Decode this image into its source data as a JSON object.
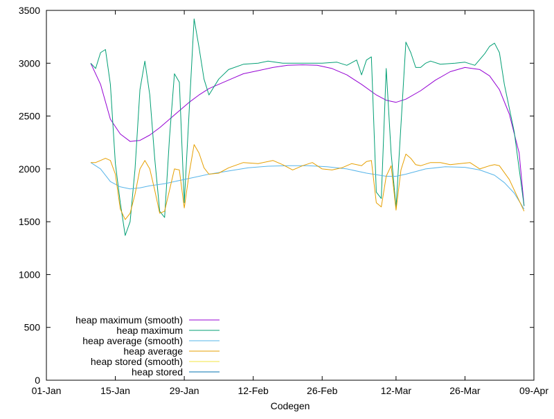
{
  "chart_data": {
    "type": "line",
    "title": "",
    "xlabel": "Codegen",
    "ylabel": "",
    "x_type": "date",
    "xlim": [
      "2024-01-01",
      "2024-04-09"
    ],
    "ylim": [
      0,
      3500
    ],
    "xticks": [
      {
        "date": "2024-01-01",
        "label": "01-Jan"
      },
      {
        "date": "2024-01-15",
        "label": "15-Jan"
      },
      {
        "date": "2024-01-29",
        "label": "29-Jan"
      },
      {
        "date": "2024-02-12",
        "label": "12-Feb"
      },
      {
        "date": "2024-02-26",
        "label": "26-Feb"
      },
      {
        "date": "2024-03-12",
        "label": "12-Mar"
      },
      {
        "date": "2024-03-26",
        "label": "26-Mar"
      },
      {
        "date": "2024-04-09",
        "label": "09-Apr"
      }
    ],
    "yticks": [
      {
        "value": 0,
        "label": "0"
      },
      {
        "value": 500,
        "label": "500"
      },
      {
        "value": 1000,
        "label": "1000"
      },
      {
        "value": 1500,
        "label": "1500"
      },
      {
        "value": 2000,
        "label": "2000"
      },
      {
        "value": 2500,
        "label": "2500"
      },
      {
        "value": 3000,
        "label": "3000"
      },
      {
        "value": 3500,
        "label": "3500"
      }
    ],
    "grid": false,
    "legend_position": "bottom-left",
    "series": [
      {
        "name": "heap maximum (smooth)",
        "color": "#9400d3",
        "points": [
          [
            "2024-01-10",
            3000
          ],
          [
            "2024-01-12",
            2800
          ],
          [
            "2024-01-14",
            2470
          ],
          [
            "2024-01-16",
            2330
          ],
          [
            "2024-01-18",
            2260
          ],
          [
            "2024-01-20",
            2270
          ],
          [
            "2024-01-22",
            2320
          ],
          [
            "2024-01-24",
            2390
          ],
          [
            "2024-01-26",
            2470
          ],
          [
            "2024-01-28",
            2550
          ],
          [
            "2024-01-30",
            2630
          ],
          [
            "2024-02-01",
            2700
          ],
          [
            "2024-02-03",
            2760
          ],
          [
            "2024-02-06",
            2820
          ],
          [
            "2024-02-08",
            2860
          ],
          [
            "2024-02-10",
            2900
          ],
          [
            "2024-02-13",
            2930
          ],
          [
            "2024-02-16",
            2960
          ],
          [
            "2024-02-19",
            2980
          ],
          [
            "2024-02-22",
            2985
          ],
          [
            "2024-02-25",
            2980
          ],
          [
            "2024-02-28",
            2950
          ],
          [
            "2024-03-02",
            2890
          ],
          [
            "2024-03-05",
            2800
          ],
          [
            "2024-03-08",
            2700
          ],
          [
            "2024-03-10",
            2650
          ],
          [
            "2024-03-12",
            2630
          ],
          [
            "2024-03-14",
            2660
          ],
          [
            "2024-03-17",
            2740
          ],
          [
            "2024-03-20",
            2840
          ],
          [
            "2024-03-23",
            2920
          ],
          [
            "2024-03-26",
            2960
          ],
          [
            "2024-03-29",
            2940
          ],
          [
            "2024-03-31",
            2880
          ],
          [
            "2024-04-02",
            2750
          ],
          [
            "2024-04-04",
            2520
          ],
          [
            "2024-04-06",
            2150
          ],
          [
            "2024-04-07",
            1650
          ]
        ]
      },
      {
        "name": "heap maximum",
        "color": "#009e73",
        "points": [
          [
            "2024-01-10",
            3000
          ],
          [
            "2024-01-11",
            2950
          ],
          [
            "2024-01-12",
            3100
          ],
          [
            "2024-01-13",
            3130
          ],
          [
            "2024-01-14",
            2800
          ],
          [
            "2024-01-15",
            2050
          ],
          [
            "2024-01-16",
            1680
          ],
          [
            "2024-01-17",
            1370
          ],
          [
            "2024-01-18",
            1500
          ],
          [
            "2024-01-19",
            2000
          ],
          [
            "2024-01-20",
            2750
          ],
          [
            "2024-01-21",
            3020
          ],
          [
            "2024-01-22",
            2700
          ],
          [
            "2024-01-23",
            2100
          ],
          [
            "2024-01-24",
            1600
          ],
          [
            "2024-01-25",
            1540
          ],
          [
            "2024-01-26",
            2300
          ],
          [
            "2024-01-27",
            2900
          ],
          [
            "2024-01-28",
            2820
          ],
          [
            "2024-01-29",
            1680
          ],
          [
            "2024-01-30",
            2550
          ],
          [
            "2024-01-31",
            3420
          ],
          [
            "2024-02-01",
            3150
          ],
          [
            "2024-02-02",
            2850
          ],
          [
            "2024-02-03",
            2700
          ],
          [
            "2024-02-05",
            2850
          ],
          [
            "2024-02-07",
            2940
          ],
          [
            "2024-02-10",
            2990
          ],
          [
            "2024-02-13",
            3000
          ],
          [
            "2024-02-15",
            3020
          ],
          [
            "2024-02-18",
            3000
          ],
          [
            "2024-02-22",
            3000
          ],
          [
            "2024-02-26",
            3000
          ],
          [
            "2024-02-29",
            3010
          ],
          [
            "2024-03-02",
            2980
          ],
          [
            "2024-03-04",
            3030
          ],
          [
            "2024-03-05",
            2890
          ],
          [
            "2024-03-06",
            3030
          ],
          [
            "2024-03-07",
            3060
          ],
          [
            "2024-03-08",
            1780
          ],
          [
            "2024-03-09",
            1720
          ],
          [
            "2024-03-10",
            2950
          ],
          [
            "2024-03-11",
            2150
          ],
          [
            "2024-03-12",
            1630
          ],
          [
            "2024-03-14",
            3200
          ],
          [
            "2024-03-15",
            3100
          ],
          [
            "2024-03-16",
            2960
          ],
          [
            "2024-03-17",
            2960
          ],
          [
            "2024-03-18",
            3000
          ],
          [
            "2024-03-19",
            3020
          ],
          [
            "2024-03-21",
            2990
          ],
          [
            "2024-03-24",
            3000
          ],
          [
            "2024-03-26",
            3010
          ],
          [
            "2024-03-28",
            2980
          ],
          [
            "2024-03-30",
            3090
          ],
          [
            "2024-03-31",
            3160
          ],
          [
            "2024-04-01",
            3190
          ],
          [
            "2024-04-02",
            3100
          ],
          [
            "2024-04-03",
            2800
          ],
          [
            "2024-04-05",
            2350
          ],
          [
            "2024-04-07",
            1650
          ]
        ]
      },
      {
        "name": "heap average (smooth)",
        "color": "#56b4e9",
        "points": [
          [
            "2024-01-10",
            2060
          ],
          [
            "2024-01-12",
            2000
          ],
          [
            "2024-01-14",
            1880
          ],
          [
            "2024-01-16",
            1830
          ],
          [
            "2024-01-18",
            1810
          ],
          [
            "2024-01-20",
            1820
          ],
          [
            "2024-01-22",
            1840
          ],
          [
            "2024-01-25",
            1860
          ],
          [
            "2024-01-28",
            1890
          ],
          [
            "2024-01-31",
            1920
          ],
          [
            "2024-02-03",
            1950
          ],
          [
            "2024-02-07",
            1980
          ],
          [
            "2024-02-11",
            2010
          ],
          [
            "2024-02-15",
            2025
          ],
          [
            "2024-02-19",
            2030
          ],
          [
            "2024-02-23",
            2030
          ],
          [
            "2024-02-27",
            2020
          ],
          [
            "2024-03-02",
            2000
          ],
          [
            "2024-03-06",
            1960
          ],
          [
            "2024-03-10",
            1930
          ],
          [
            "2024-03-12",
            1930
          ],
          [
            "2024-03-14",
            1950
          ],
          [
            "2024-03-18",
            2000
          ],
          [
            "2024-03-22",
            2020
          ],
          [
            "2024-03-26",
            2015
          ],
          [
            "2024-03-29",
            1990
          ],
          [
            "2024-04-01",
            1940
          ],
          [
            "2024-04-03",
            1870
          ],
          [
            "2024-04-05",
            1770
          ],
          [
            "2024-04-07",
            1620
          ]
        ]
      },
      {
        "name": "heap average",
        "color": "#e69f00",
        "points": [
          [
            "2024-01-10",
            2060
          ],
          [
            "2024-01-11",
            2060
          ],
          [
            "2024-01-12",
            2080
          ],
          [
            "2024-01-13",
            2100
          ],
          [
            "2024-01-14",
            2080
          ],
          [
            "2024-01-15",
            1950
          ],
          [
            "2024-01-16",
            1620
          ],
          [
            "2024-01-17",
            1520
          ],
          [
            "2024-01-18",
            1580
          ],
          [
            "2024-01-19",
            1760
          ],
          [
            "2024-01-20",
            2000
          ],
          [
            "2024-01-21",
            2080
          ],
          [
            "2024-01-22",
            2000
          ],
          [
            "2024-01-23",
            1800
          ],
          [
            "2024-01-24",
            1580
          ],
          [
            "2024-01-25",
            1600
          ],
          [
            "2024-01-26",
            1800
          ],
          [
            "2024-01-27",
            2000
          ],
          [
            "2024-01-28",
            1990
          ],
          [
            "2024-01-29",
            1630
          ],
          [
            "2024-01-30",
            1960
          ],
          [
            "2024-01-31",
            2230
          ],
          [
            "2024-02-01",
            2150
          ],
          [
            "2024-02-02",
            2010
          ],
          [
            "2024-02-03",
            1950
          ],
          [
            "2024-02-05",
            1960
          ],
          [
            "2024-02-07",
            2010
          ],
          [
            "2024-02-10",
            2060
          ],
          [
            "2024-02-13",
            2050
          ],
          [
            "2024-02-16",
            2080
          ],
          [
            "2024-02-18",
            2040
          ],
          [
            "2024-02-20",
            1990
          ],
          [
            "2024-02-22",
            2030
          ],
          [
            "2024-02-24",
            2060
          ],
          [
            "2024-02-26",
            2000
          ],
          [
            "2024-02-28",
            1990
          ],
          [
            "2024-03-01",
            2010
          ],
          [
            "2024-03-03",
            2050
          ],
          [
            "2024-03-05",
            2030
          ],
          [
            "2024-03-06",
            2070
          ],
          [
            "2024-03-07",
            2080
          ],
          [
            "2024-03-08",
            1680
          ],
          [
            "2024-03-09",
            1640
          ],
          [
            "2024-03-10",
            1930
          ],
          [
            "2024-03-11",
            2030
          ],
          [
            "2024-03-12",
            1610
          ],
          [
            "2024-03-13",
            1990
          ],
          [
            "2024-03-14",
            2140
          ],
          [
            "2024-03-15",
            2100
          ],
          [
            "2024-03-16",
            2040
          ],
          [
            "2024-03-17",
            2030
          ],
          [
            "2024-03-19",
            2060
          ],
          [
            "2024-03-21",
            2060
          ],
          [
            "2024-03-23",
            2040
          ],
          [
            "2024-03-25",
            2050
          ],
          [
            "2024-03-27",
            2060
          ],
          [
            "2024-03-29",
            2000
          ],
          [
            "2024-03-31",
            2030
          ],
          [
            "2024-04-01",
            2040
          ],
          [
            "2024-04-02",
            2030
          ],
          [
            "2024-04-04",
            1900
          ],
          [
            "2024-04-07",
            1600
          ]
        ]
      },
      {
        "name": "heap stored (smooth)",
        "color": "#f0e442",
        "points": []
      },
      {
        "name": "heap stored",
        "color": "#0072b2",
        "points": []
      }
    ]
  }
}
